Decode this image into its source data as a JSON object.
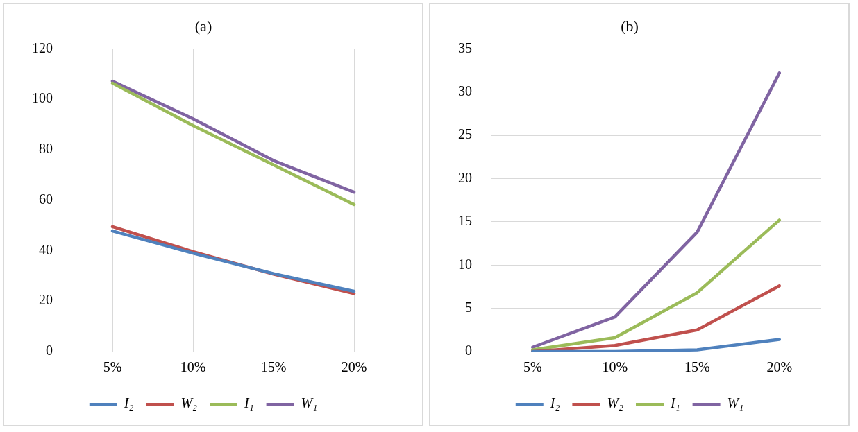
{
  "chart_data": [
    {
      "type": "line",
      "title": "(a)",
      "categories": [
        "5%",
        "10%",
        "15%",
        "20%"
      ],
      "ylim": [
        0,
        120
      ],
      "yticks": [
        0,
        20,
        40,
        60,
        80,
        100,
        120
      ],
      "grid": "x",
      "legend": "bottom",
      "marker": "none",
      "series": [
        {
          "name": "I₂",
          "color": "#4f81bd",
          "values": [
            47.8,
            39.0,
            30.9,
            23.9
          ]
        },
        {
          "name": "W₂",
          "color": "#c0504d",
          "values": [
            49.5,
            39.6,
            30.7,
            23.0
          ]
        },
        {
          "name": "I₁",
          "color": "#9bbb59",
          "values": [
            106.4,
            89.6,
            74.0,
            58.3
          ]
        },
        {
          "name": "W₁",
          "color": "#8064a2",
          "values": [
            107.2,
            92.3,
            75.7,
            63.2
          ]
        }
      ]
    },
    {
      "type": "line",
      "title": "(b)",
      "categories": [
        "5%",
        "10%",
        "15%",
        "20%"
      ],
      "ylim": [
        0,
        35
      ],
      "yticks": [
        0,
        5,
        10,
        15,
        20,
        25,
        30,
        35
      ],
      "grid": "y",
      "legend": "bottom",
      "marker": "none",
      "series": [
        {
          "name": "I₂",
          "color": "#4f81bd",
          "values": [
            0.0,
            0.0,
            0.2,
            1.4
          ]
        },
        {
          "name": "W₂",
          "color": "#c0504d",
          "values": [
            0.0,
            0.7,
            2.5,
            7.6
          ]
        },
        {
          "name": "I₁",
          "color": "#9bbb59",
          "values": [
            0.2,
            1.6,
            6.8,
            15.2
          ]
        },
        {
          "name": "W₁",
          "color": "#8064a2",
          "values": [
            0.5,
            4.0,
            13.8,
            32.2
          ]
        }
      ]
    }
  ]
}
